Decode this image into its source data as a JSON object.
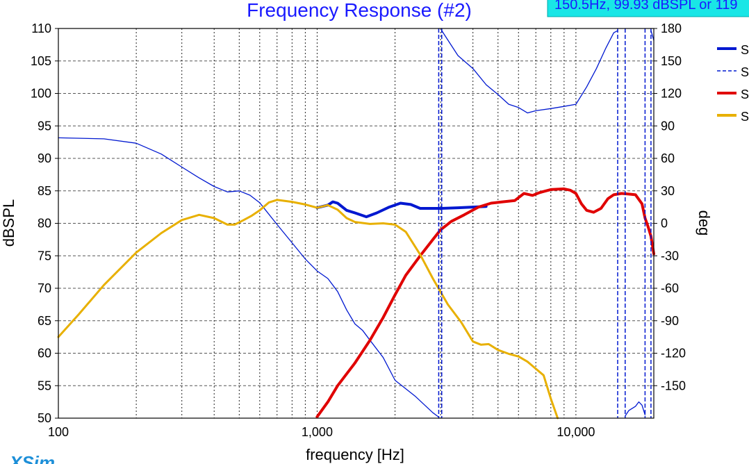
{
  "app": {
    "brand": "XSim"
  },
  "cursor_readout": "150.5Hz, 99.93 dBSPL or 119",
  "chart_data": {
    "type": "line",
    "title": "Frequency Response (#2)",
    "xlabel": "frequency [Hz]",
    "ylabel": "dBSPL",
    "y2label": "deg",
    "xscale": "log",
    "xlim": [
      100,
      20000
    ],
    "ylim": [
      50,
      110
    ],
    "y2lim": [
      -180,
      180
    ],
    "x_ticks": [
      100,
      1000,
      10000
    ],
    "x_tick_labels": [
      "100",
      "1,000",
      "10,000"
    ],
    "y_ticks": [
      50,
      55,
      60,
      65,
      70,
      75,
      80,
      85,
      90,
      95,
      100,
      105,
      110
    ],
    "y2_ticks": [
      -150,
      -120,
      -90,
      -60,
      -30,
      0,
      30,
      60,
      90,
      120,
      150,
      180
    ],
    "grid": true,
    "legend": {
      "position": "right, clipped",
      "entries": [
        "S",
        "S",
        "S",
        "S"
      ]
    },
    "colors": {
      "title": "#1a1aff",
      "readout_bg": "#19e6e6",
      "readout_text": "#1a1aff",
      "brand": "#1d8fd8"
    },
    "series": [
      {
        "axis": "left",
        "color": "#0018d0",
        "width": 4,
        "dash": "",
        "points": [
          [
            1000,
            82.4
          ],
          [
            1100,
            82.8
          ],
          [
            1150,
            83.3
          ],
          [
            1200,
            83.1
          ],
          [
            1300,
            82.0
          ],
          [
            1400,
            81.6
          ],
          [
            1550,
            81.0
          ],
          [
            1700,
            81.6
          ],
          [
            1900,
            82.5
          ],
          [
            2100,
            83.1
          ],
          [
            2300,
            82.9
          ],
          [
            2500,
            82.3
          ],
          [
            3000,
            82.3
          ],
          [
            3500,
            82.4
          ],
          [
            4000,
            82.5
          ],
          [
            4500,
            82.6
          ]
        ]
      },
      {
        "axis": "right",
        "color": "#0018d0",
        "width": 1.3,
        "dash": "",
        "points": [
          [
            100,
            79
          ],
          [
            150,
            78
          ],
          [
            200,
            74
          ],
          [
            250,
            64
          ],
          [
            300,
            52
          ],
          [
            350,
            42
          ],
          [
            400,
            34
          ],
          [
            450,
            29
          ],
          [
            500,
            30
          ],
          [
            550,
            26
          ],
          [
            600,
            19
          ],
          [
            700,
            -1
          ],
          [
            800,
            -18
          ],
          [
            900,
            -33
          ],
          [
            1000,
            -44
          ],
          [
            1100,
            -51
          ],
          [
            1200,
            -63
          ],
          [
            1300,
            -80
          ],
          [
            1400,
            -93
          ],
          [
            1500,
            -99
          ],
          [
            1600,
            -108
          ],
          [
            1800,
            -124
          ],
          [
            2000,
            -145
          ],
          [
            2400,
            -160
          ],
          [
            2800,
            -175
          ],
          [
            2950,
            -179
          ]
        ]
      },
      {
        "axis": "right",
        "color": "#0018d0",
        "width": 1.3,
        "dash": "",
        "points": [
          [
            3030,
            178
          ],
          [
            3500,
            155
          ],
          [
            4000,
            143
          ],
          [
            4500,
            128
          ],
          [
            5000,
            119
          ],
          [
            5500,
            110
          ],
          [
            6000,
            107
          ],
          [
            6500,
            102
          ],
          [
            7000,
            104
          ],
          [
            8000,
            106
          ],
          [
            9000,
            108
          ],
          [
            10000,
            110
          ],
          [
            11000,
            126
          ],
          [
            12000,
            143
          ],
          [
            13000,
            161
          ],
          [
            14000,
            176
          ],
          [
            14500,
            178
          ]
        ]
      },
      {
        "axis": "right",
        "color": "#0018d0",
        "width": 1.3,
        "dash": "",
        "points": [
          [
            15500,
            -178
          ],
          [
            16000,
            -173
          ],
          [
            17000,
            -169
          ],
          [
            17500,
            -165
          ],
          [
            18000,
            -168
          ],
          [
            18500,
            -177
          ]
        ]
      },
      {
        "axis": "right",
        "color": "#0018d0",
        "width": 1.3,
        "dash": "",
        "points": [
          [
            19500,
            178
          ],
          [
            20000,
            169
          ]
        ]
      },
      {
        "axis": "right",
        "color": "#0018d0",
        "width": 1.6,
        "dash": "6 3",
        "points": [
          [
            2950,
            -179
          ],
          [
            2950,
            -180
          ]
        ]
      },
      {
        "axis": "right",
        "color": "#0018d0",
        "width": 1.6,
        "dash": "6 3",
        "points": [
          [
            3030,
            180
          ],
          [
            3030,
            178
          ]
        ]
      },
      {
        "axis": "left",
        "color": "#e00000",
        "width": 4,
        "dash": "",
        "points": [
          [
            1000,
            50.2
          ],
          [
            1100,
            52.5
          ],
          [
            1200,
            55
          ],
          [
            1400,
            58.5
          ],
          [
            1600,
            62
          ],
          [
            1800,
            65.5
          ],
          [
            2000,
            69
          ],
          [
            2200,
            72
          ],
          [
            2500,
            75
          ],
          [
            2800,
            77.5
          ],
          [
            3000,
            79.0
          ],
          [
            3300,
            80.3
          ],
          [
            3700,
            81.3
          ],
          [
            4200,
            82.5
          ],
          [
            4700,
            83.1
          ],
          [
            5200,
            83.3
          ],
          [
            5800,
            83.5
          ],
          [
            6300,
            84.6
          ],
          [
            6800,
            84.3
          ],
          [
            7200,
            84.7
          ],
          [
            7500,
            84.9
          ],
          [
            8000,
            85.2
          ],
          [
            9000,
            85.3
          ],
          [
            9500,
            85.1
          ],
          [
            10000,
            84.6
          ],
          [
            10500,
            83.0
          ],
          [
            11000,
            82.0
          ],
          [
            11700,
            81.7
          ],
          [
            12500,
            82.3
          ],
          [
            13300,
            83.8
          ],
          [
            14000,
            84.4
          ],
          [
            15000,
            84.6
          ],
          [
            16000,
            84.5
          ],
          [
            17000,
            84.4
          ],
          [
            18000,
            83.0
          ],
          [
            18500,
            80.8
          ],
          [
            19000,
            79.5
          ],
          [
            19500,
            78.0
          ],
          [
            20000,
            75.3
          ]
        ]
      },
      {
        "axis": "left",
        "color": "#e8b000",
        "width": 3,
        "dash": "",
        "points": [
          [
            100,
            62.5
          ],
          [
            120,
            66
          ],
          [
            150,
            70.5
          ],
          [
            200,
            75.5
          ],
          [
            250,
            78.5
          ],
          [
            300,
            80.5
          ],
          [
            350,
            81.3
          ],
          [
            400,
            80.8
          ],
          [
            450,
            79.8
          ],
          [
            480,
            79.8
          ],
          [
            520,
            80.5
          ],
          [
            560,
            81.2
          ],
          [
            600,
            82
          ],
          [
            650,
            83.2
          ],
          [
            700,
            83.6
          ],
          [
            800,
            83.3
          ],
          [
            900,
            82.9
          ],
          [
            1000,
            82.4
          ],
          [
            1100,
            82.8
          ],
          [
            1200,
            82.1
          ],
          [
            1300,
            80.8
          ],
          [
            1400,
            80.2
          ],
          [
            1600,
            79.9
          ],
          [
            1800,
            80
          ],
          [
            2000,
            79.8
          ],
          [
            2200,
            78.7
          ],
          [
            2500,
            75.2
          ],
          [
            2800,
            71.5
          ],
          [
            3200,
            67.5
          ],
          [
            3600,
            64.8
          ],
          [
            4000,
            61.8
          ],
          [
            4300,
            61.3
          ],
          [
            4600,
            61.4
          ],
          [
            5000,
            60.5
          ],
          [
            5500,
            59.9
          ],
          [
            6000,
            59.5
          ],
          [
            6500,
            58.7
          ],
          [
            7000,
            57.6
          ],
          [
            7500,
            56.6
          ],
          [
            8000,
            53
          ],
          [
            8500,
            50.0
          ]
        ]
      }
    ]
  }
}
